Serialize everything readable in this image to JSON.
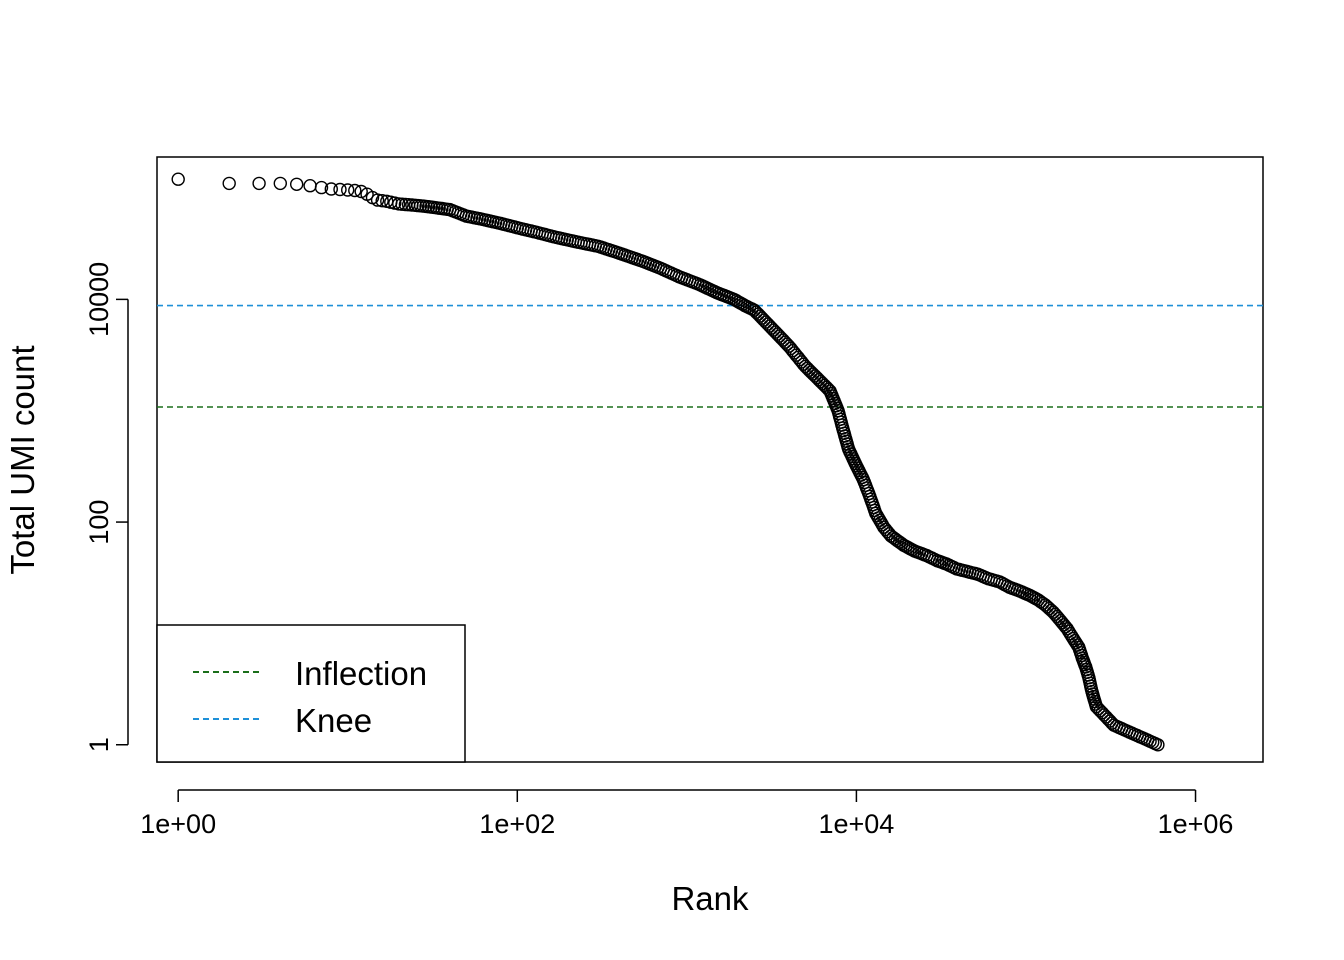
{
  "chart_data": {
    "type": "scatter",
    "xlabel": "Rank",
    "ylabel": "Total UMI count",
    "x_scale": "log",
    "y_scale": "log",
    "xlim": [
      0.75,
      2500000
    ],
    "ylim": [
      0.7,
      190000
    ],
    "x_ticks": [
      {
        "value": 1,
        "label": "1e+00"
      },
      {
        "value": 100,
        "label": "1e+02"
      },
      {
        "value": 10000,
        "label": "1e+04"
      },
      {
        "value": 1000000,
        "label": "1e+06"
      }
    ],
    "y_ticks": [
      {
        "value": 1,
        "label": "1"
      },
      {
        "value": 100,
        "label": "100"
      },
      {
        "value": 10000,
        "label": "10000"
      }
    ],
    "points": [
      [
        1,
        120000
      ],
      [
        2,
        110000
      ],
      [
        3,
        110000
      ],
      [
        4,
        110000
      ],
      [
        5,
        108000
      ],
      [
        6,
        105000
      ],
      [
        7,
        101000
      ],
      [
        8,
        98000
      ],
      [
        9,
        97000
      ],
      [
        10,
        96000
      ],
      [
        11,
        95000
      ],
      [
        12,
        93000
      ],
      [
        13,
        88000
      ],
      [
        14,
        82000
      ],
      [
        15,
        78000
      ],
      [
        17,
        76000
      ],
      [
        20,
        72000
      ],
      [
        25,
        70000
      ],
      [
        30,
        68000
      ],
      [
        40,
        64000
      ],
      [
        50,
        56000
      ],
      [
        60,
        53000
      ],
      [
        80,
        48000
      ],
      [
        100,
        44000
      ],
      [
        130,
        40000
      ],
      [
        170,
        36000
      ],
      [
        220,
        33000
      ],
      [
        300,
        30000
      ],
      [
        400,
        26000
      ],
      [
        550,
        22000
      ],
      [
        700,
        19000
      ],
      [
        900,
        16000
      ],
      [
        1200,
        13500
      ],
      [
        1500,
        11500
      ],
      [
        1900,
        10000
      ],
      [
        2200,
        8800
      ],
      [
        2500,
        8000
      ],
      [
        3000,
        6000
      ],
      [
        4000,
        3800
      ],
      [
        5000,
        2500
      ],
      [
        6000,
        1900
      ],
      [
        7000,
        1500
      ],
      [
        7800,
        1000
      ],
      [
        8300,
        700
      ],
      [
        9000,
        450
      ],
      [
        10000,
        320
      ],
      [
        11000,
        240
      ],
      [
        12000,
        170
      ],
      [
        13000,
        120
      ],
      [
        14500,
        90
      ],
      [
        16000,
        75
      ],
      [
        19000,
        62
      ],
      [
        22000,
        55
      ],
      [
        26000,
        50
      ],
      [
        30000,
        45
      ],
      [
        34000,
        42
      ],
      [
        39000,
        38
      ],
      [
        45000,
        36
      ],
      [
        52000,
        34
      ],
      [
        60000,
        31
      ],
      [
        70000,
        29
      ],
      [
        80000,
        26
      ],
      [
        92000,
        24
      ],
      [
        105000,
        22
      ],
      [
        118000,
        20
      ],
      [
        130000,
        18
      ],
      [
        145000,
        15.5
      ],
      [
        160000,
        13
      ],
      [
        175000,
        11
      ],
      [
        190000,
        9
      ],
      [
        205000,
        7.5
      ],
      [
        215000,
        6
      ],
      [
        225000,
        5
      ],
      [
        235000,
        4
      ],
      [
        245000,
        3
      ],
      [
        260000,
        2.2
      ],
      [
        330000,
        1.5
      ],
      [
        600000,
        1
      ]
    ],
    "hlines": [
      {
        "name": "Inflection",
        "value": 1080,
        "color": "#1a6e1a",
        "dash": "dashed"
      },
      {
        "name": "Knee",
        "value": 8800,
        "color": "#1e90d8",
        "dash": "dashed"
      }
    ],
    "legend": {
      "position": "bottom-left",
      "entries": [
        {
          "label": "Inflection",
          "color": "#1a6e1a"
        },
        {
          "label": "Knee",
          "color": "#1e90d8"
        }
      ]
    }
  }
}
